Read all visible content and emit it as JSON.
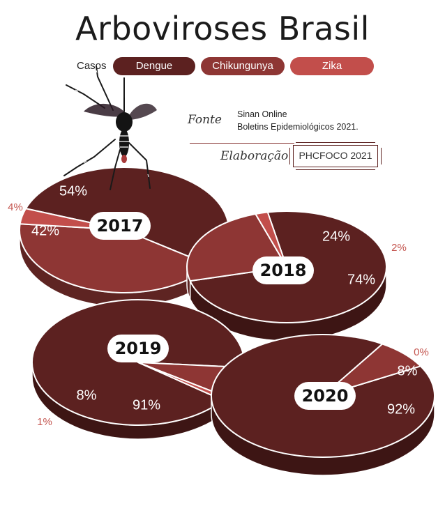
{
  "title": "Arboviroses Brasil",
  "legend": {
    "label": "Casos",
    "items": [
      {
        "name": "Dengue",
        "color": "#5c2120"
      },
      {
        "name": "Chikungunya",
        "color": "#8e3634"
      },
      {
        "name": "Zika",
        "color": "#c24e4b"
      }
    ]
  },
  "source": {
    "label": "Fonte",
    "lines": [
      "Sinan Online",
      "Boletins Epidemiológicos 2021."
    ]
  },
  "credit": {
    "label": "Elaboração",
    "value": "PHCFOCO 2021"
  },
  "chart_data": {
    "type": "pie",
    "series_names": [
      "Dengue",
      "Chikungunya",
      "Zika"
    ],
    "pies": [
      {
        "year": "2017",
        "values": [
          54,
          42,
          4
        ],
        "labels": [
          "54%",
          "42%",
          "4%"
        ]
      },
      {
        "year": "2018",
        "values": [
          74,
          24,
          2
        ],
        "labels": [
          "74%",
          "24%",
          "2%"
        ]
      },
      {
        "year": "2019",
        "values": [
          91,
          8,
          1
        ],
        "labels": [
          "91%",
          "8%",
          "1%"
        ]
      },
      {
        "year": "2020",
        "values": [
          92,
          8,
          0
        ],
        "labels": [
          "92%",
          "8%",
          "0%"
        ]
      }
    ]
  }
}
